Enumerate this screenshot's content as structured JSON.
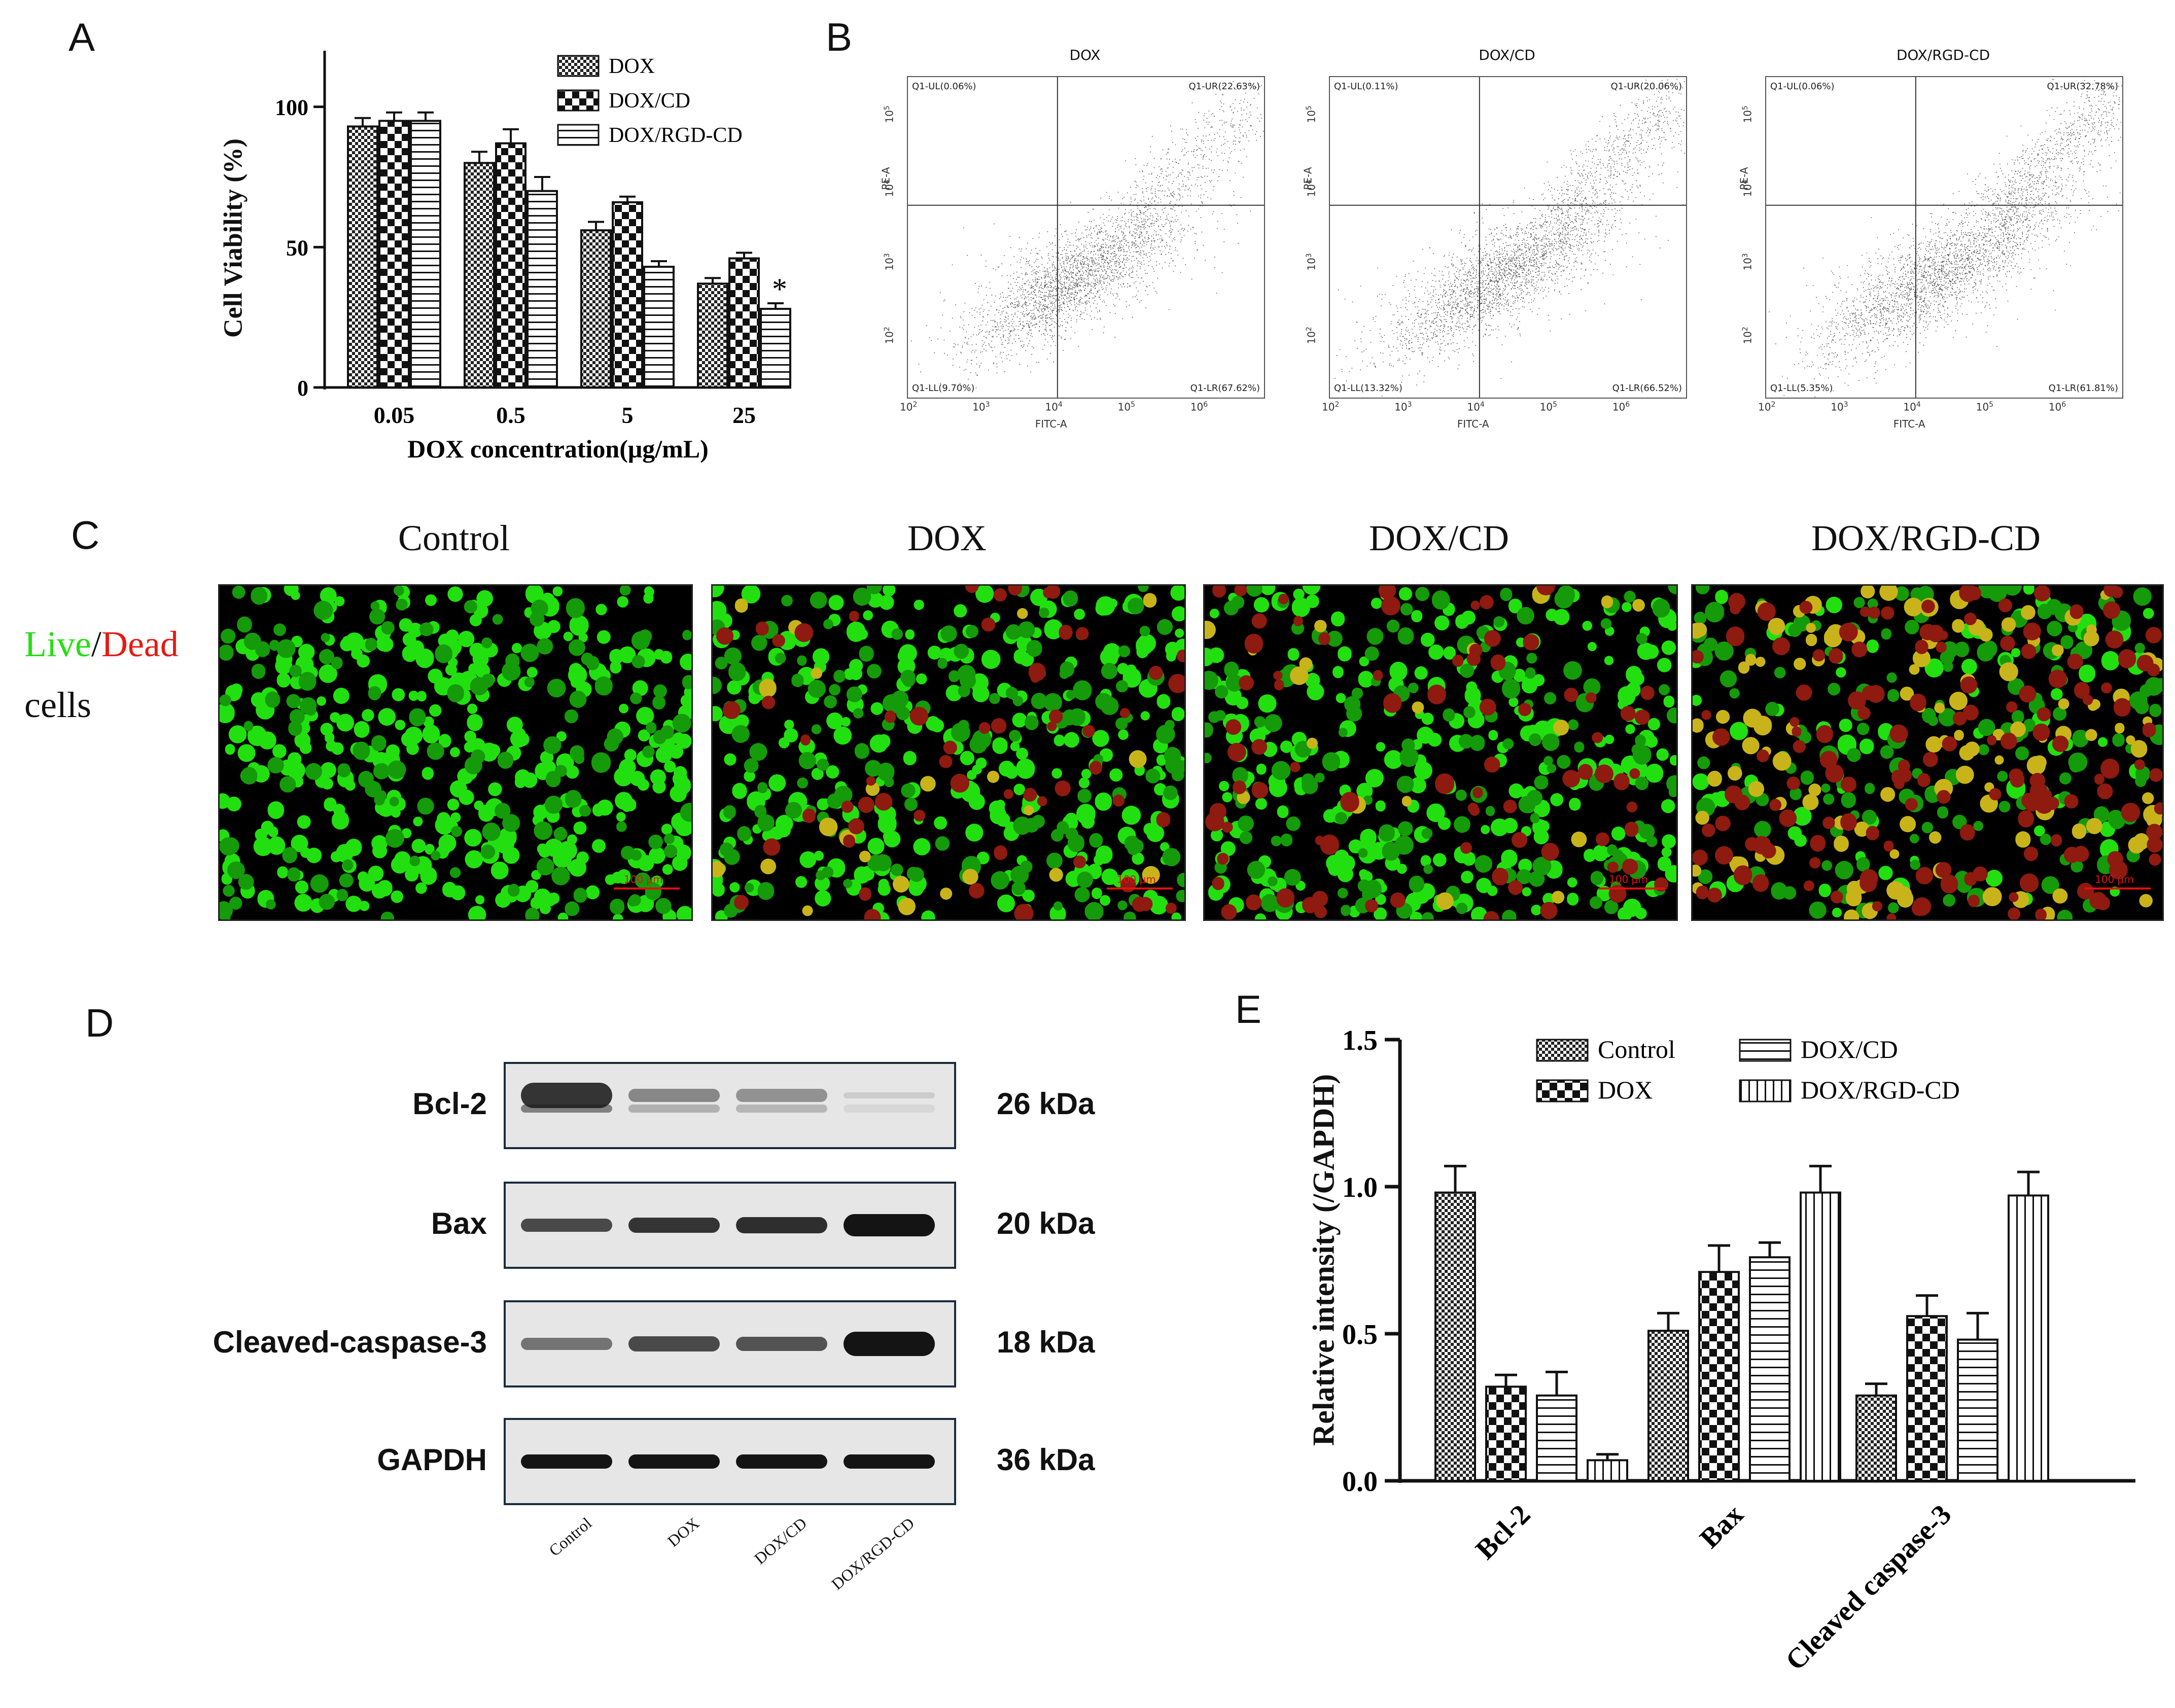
{
  "panels": {
    "a": "A",
    "b": "B",
    "c": "C",
    "d": "D",
    "e": "E"
  },
  "panel_a": {
    "chart_data": {
      "type": "bar",
      "categories": [
        "0.05",
        "0.5",
        "5",
        "25"
      ],
      "series": [
        {
          "name": "DOX",
          "values": [
            93,
            80,
            56,
            37
          ],
          "errors": [
            3,
            4,
            3,
            2
          ]
        },
        {
          "name": "DOX/CD",
          "values": [
            95,
            87,
            66,
            46
          ],
          "errors": [
            3,
            5,
            2,
            2
          ]
        },
        {
          "name": "DOX/RGD-CD",
          "values": [
            95,
            70,
            43,
            28
          ],
          "errors": [
            3,
            5,
            2,
            2
          ]
        }
      ],
      "xlabel": "DOX concentration(μg/mL)",
      "ylabel": "Cell Viability (%)",
      "ylim": [
        0,
        120
      ],
      "yticks": [
        "0",
        "50",
        "100"
      ],
      "annotation": "*"
    }
  },
  "panel_b": {
    "plots": [
      {
        "title": "DOX",
        "ul": "Q1-UL(0.06%)",
        "ur": "Q1-UR(22.63%)",
        "ll": "Q1-LL(9.70%)",
        "lr": "Q1-LR(67.62%)"
      },
      {
        "title": "DOX/CD",
        "ul": "Q1-UL(0.11%)",
        "ur": "Q1-UR(20.06%)",
        "ll": "Q1-LL(13.32%)",
        "lr": "Q1-LR(66.52%)"
      },
      {
        "title": "DOX/RGD-CD",
        "ul": "Q1-UL(0.06%)",
        "ur": "Q1-UR(32.78%)",
        "ll": "Q1-LL(5.35%)",
        "lr": "Q1-LR(61.81%)"
      }
    ],
    "xaxis": "FITC-A",
    "yaxis": "PE-A",
    "xticks": [
      "10",
      "10",
      "10",
      "10",
      "10"
    ],
    "xticks_exp": [
      "2",
      "3",
      "4",
      "5",
      "6"
    ],
    "yticks": [
      "10",
      "10",
      "10",
      "10"
    ],
    "yticks_exp": [
      "5",
      "4",
      "3",
      "2"
    ]
  },
  "panel_c": {
    "titles": [
      "Control",
      "DOX",
      "DOX/CD",
      "DOX/RGD-CD"
    ],
    "row_label_live": "Live",
    "row_label_slash": "/",
    "row_label_dead": "Dead",
    "row_label_cells": "cells",
    "scale": "100 μm",
    "colors": {
      "live": "#22e00f",
      "dead": "#e51a12"
    }
  },
  "panel_d": {
    "bands": [
      {
        "label": "Bcl-2",
        "kda": "26 kDa"
      },
      {
        "label": "Bax",
        "kda": "20 kDa"
      },
      {
        "label": "Cleaved-caspase-3",
        "kda": "18 kDa"
      },
      {
        "label": "GAPDH",
        "kda": "36 kDa"
      }
    ],
    "lanes": [
      "Control",
      "DOX",
      "DOX/CD",
      "DOX/RGD-CD"
    ]
  },
  "panel_e": {
    "chart_data": {
      "type": "bar",
      "categories": [
        "Bcl-2",
        "Bax",
        "Cleaved caspase-3"
      ],
      "series": [
        {
          "name": "Control",
          "values": [
            0.98,
            0.51,
            0.29
          ],
          "errors": [
            0.09,
            0.06,
            0.04
          ]
        },
        {
          "name": "DOX",
          "values": [
            0.32,
            0.71,
            0.56
          ],
          "errors": [
            0.04,
            0.09,
            0.07
          ]
        },
        {
          "name": "DOX/CD",
          "values": [
            0.29,
            0.76,
            0.48
          ],
          "errors": [
            0.08,
            0.05,
            0.09
          ]
        },
        {
          "name": "DOX/RGD-CD",
          "values": [
            0.07,
            0.98,
            0.97
          ],
          "errors": [
            0.02,
            0.09,
            0.08
          ]
        }
      ],
      "ylabel": "Relative intensity (/GAPDH)",
      "ylim": [
        0,
        1.5
      ],
      "yticks": [
        "0.0",
        "0.5",
        "1.0",
        "1.5"
      ]
    }
  }
}
